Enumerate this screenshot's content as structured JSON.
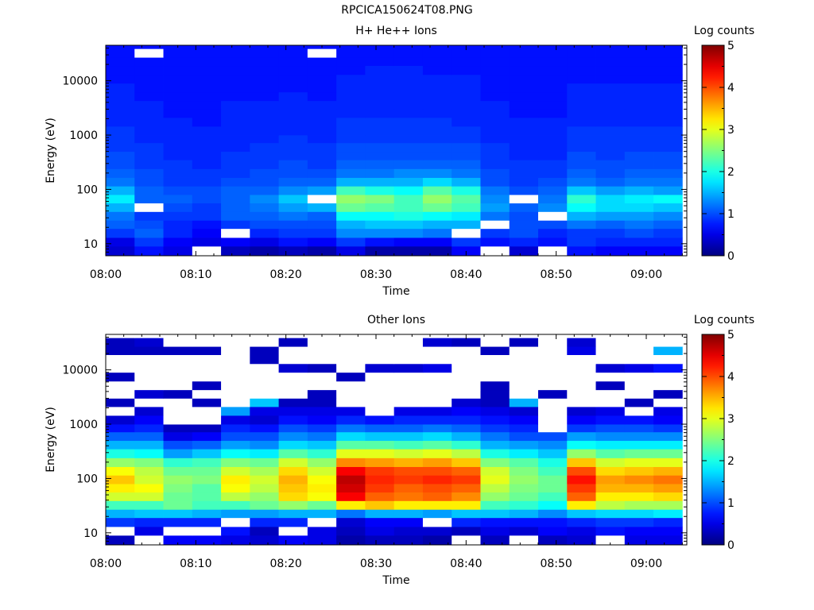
{
  "figure": {
    "title": "RPCICA150624T08.PNG"
  },
  "colors": {
    "missing": "#ffffff",
    "colormap": "jet"
  },
  "chart_data": [
    {
      "type": "heatmap",
      "title": "H+ He++ Ions",
      "xlabel": "Time",
      "ylabel": "Energy (eV)",
      "colorbar_label": "Log counts",
      "colorbar_ticks": [
        "0",
        "1",
        "2",
        "3",
        "4",
        "5"
      ],
      "clim": [
        0,
        5
      ],
      "x_ticks": [
        "08:00",
        "08:10",
        "08:20",
        "08:30",
        "08:40",
        "08:50",
        "09:00"
      ],
      "x_tick_minutes": [
        0,
        10,
        20,
        30,
        40,
        50,
        60
      ],
      "xlim_minutes": [
        0,
        64.5
      ],
      "y_scale": "log",
      "y_ticks": [
        "10",
        "100",
        "1000",
        "10000"
      ],
      "y_tick_values": [
        10,
        100,
        1000,
        10000
      ],
      "ylim": [
        6,
        45000
      ],
      "time_bins_minutes": [
        0,
        3.2,
        6.4,
        9.6,
        12.8,
        16.0,
        19.2,
        22.4,
        25.6,
        28.8,
        32.0,
        35.2,
        38.4,
        41.6,
        44.8,
        48.0,
        51.2,
        54.4,
        57.6,
        60.8,
        64.0
      ],
      "energy_bin_edges_ev": [
        6,
        9,
        13,
        19,
        27,
        39,
        56,
        80,
        115,
        165,
        240,
        350,
        500,
        720,
        1000,
        1450,
        2100,
        3000,
        4300,
        6200,
        9000,
        13000,
        19000,
        27000,
        39000,
        45000
      ],
      "log_counts": [
        [
          0.4,
          0.7,
          0.5,
          null,
          0.3,
          0.2,
          0.3,
          0.2,
          0.5,
          0.2,
          0.2,
          0.2,
          0.6,
          null,
          0.4,
          null,
          0.7,
          0.6,
          0.6,
          0.6
        ],
        [
          0.5,
          0.9,
          0.6,
          0.5,
          0.6,
          0.5,
          0.7,
          0.6,
          0.9,
          0.7,
          0.6,
          0.6,
          0.9,
          0.7,
          0.8,
          0.7,
          0.9,
          0.8,
          0.8,
          0.8
        ],
        [
          0.9,
          1.1,
          0.8,
          0.6,
          null,
          0.8,
          0.9,
          0.9,
          1.3,
          1.3,
          1.3,
          1.2,
          null,
          0.9,
          1.0,
          0.8,
          0.9,
          0.9,
          1.0,
          0.9
        ],
        [
          1.1,
          1.0,
          0.8,
          0.7,
          0.9,
          1.0,
          1.0,
          1.0,
          1.5,
          1.6,
          1.6,
          1.5,
          1.5,
          null,
          1.0,
          1.0,
          1.2,
          1.1,
          1.2,
          1.1
        ],
        [
          1.2,
          0.9,
          0.9,
          0.9,
          1.1,
          1.1,
          1.2,
          1.1,
          1.9,
          1.9,
          2.0,
          1.9,
          1.8,
          1.2,
          1.0,
          null,
          1.5,
          1.4,
          1.4,
          1.3
        ],
        [
          1.5,
          null,
          1.0,
          0.9,
          1.1,
          1.2,
          1.4,
          1.5,
          2.4,
          2.3,
          2.2,
          2.4,
          2.2,
          1.4,
          1.1,
          1.3,
          1.9,
          1.7,
          1.7,
          1.6
        ],
        [
          1.8,
          1.1,
          1.1,
          1.0,
          1.1,
          1.3,
          1.6,
          null,
          2.6,
          2.5,
          2.2,
          2.6,
          2.3,
          1.3,
          null,
          1.2,
          2.1,
          1.7,
          1.8,
          1.9
        ],
        [
          1.5,
          1.1,
          1.0,
          1.0,
          1.1,
          1.1,
          1.3,
          1.4,
          2.2,
          2.0,
          1.9,
          2.3,
          2.0,
          1.2,
          1.0,
          1.1,
          1.6,
          1.4,
          1.5,
          1.4
        ],
        [
          1.2,
          1.0,
          0.9,
          0.9,
          1.0,
          1.0,
          1.1,
          1.1,
          1.5,
          1.5,
          1.5,
          1.7,
          1.5,
          1.0,
          0.9,
          1.0,
          1.2,
          1.1,
          1.2,
          1.2
        ],
        [
          1.1,
          1.0,
          0.9,
          0.9,
          0.9,
          1.0,
          1.0,
          1.0,
          1.2,
          1.2,
          1.3,
          1.3,
          1.2,
          1.0,
          0.9,
          0.9,
          1.1,
          1.0,
          1.1,
          1.1
        ],
        [
          1.0,
          0.9,
          0.9,
          0.8,
          0.9,
          0.9,
          1.0,
          0.9,
          1.1,
          1.1,
          1.1,
          1.1,
          1.1,
          0.9,
          0.9,
          0.9,
          1.0,
          1.0,
          1.0,
          1.0
        ],
        [
          1.0,
          0.9,
          0.8,
          0.8,
          0.9,
          0.9,
          0.9,
          0.9,
          1.0,
          1.0,
          1.0,
          1.0,
          1.0,
          0.9,
          0.8,
          0.8,
          1.0,
          0.9,
          1.0,
          1.0
        ],
        [
          0.9,
          0.9,
          0.8,
          0.8,
          0.8,
          0.9,
          0.9,
          0.9,
          1.0,
          1.0,
          1.0,
          1.0,
          1.0,
          0.9,
          0.8,
          0.8,
          0.9,
          0.9,
          0.9,
          0.9
        ],
        [
          0.9,
          0.8,
          0.8,
          0.8,
          0.8,
          0.8,
          0.9,
          0.8,
          0.9,
          0.9,
          0.9,
          0.9,
          0.9,
          0.8,
          0.8,
          0.8,
          0.9,
          0.9,
          0.9,
          0.9
        ],
        [
          0.9,
          0.8,
          0.8,
          0.8,
          0.8,
          0.8,
          0.8,
          0.8,
          0.9,
          0.9,
          0.9,
          0.9,
          0.9,
          0.8,
          0.8,
          0.8,
          0.9,
          0.9,
          0.9,
          0.9
        ],
        [
          0.8,
          0.8,
          0.8,
          0.7,
          0.8,
          0.8,
          0.8,
          0.8,
          0.9,
          0.9,
          0.9,
          0.9,
          0.8,
          0.8,
          0.8,
          0.8,
          0.8,
          0.8,
          0.8,
          0.8
        ],
        [
          0.8,
          0.8,
          0.7,
          0.7,
          0.8,
          0.8,
          0.8,
          0.8,
          0.8,
          0.8,
          0.8,
          0.8,
          0.8,
          0.8,
          0.7,
          0.7,
          0.8,
          0.8,
          0.8,
          0.8
        ],
        [
          0.8,
          0.8,
          0.7,
          0.7,
          0.8,
          0.8,
          0.8,
          0.8,
          0.8,
          0.8,
          0.8,
          0.8,
          0.8,
          0.8,
          0.7,
          0.7,
          0.8,
          0.8,
          0.8,
          0.8
        ],
        [
          0.8,
          0.7,
          0.7,
          0.7,
          0.7,
          0.7,
          0.8,
          0.7,
          0.8,
          0.8,
          0.8,
          0.8,
          0.8,
          0.7,
          0.7,
          0.7,
          0.8,
          0.8,
          0.8,
          0.8
        ],
        [
          0.8,
          0.7,
          0.7,
          0.7,
          0.7,
          0.7,
          0.7,
          0.7,
          0.8,
          0.8,
          0.8,
          0.8,
          0.8,
          0.7,
          0.7,
          0.7,
          0.8,
          0.8,
          0.8,
          0.8
        ],
        [
          0.7,
          0.7,
          0.7,
          0.7,
          0.7,
          0.7,
          0.7,
          0.7,
          0.8,
          0.8,
          0.8,
          0.8,
          0.8,
          0.7,
          0.7,
          0.7,
          0.7,
          0.7,
          0.7,
          0.7
        ],
        [
          0.7,
          0.7,
          0.7,
          0.7,
          0.7,
          0.7,
          0.7,
          0.7,
          0.7,
          0.8,
          0.8,
          0.7,
          0.7,
          0.7,
          0.7,
          0.7,
          0.7,
          0.7,
          0.7,
          0.7
        ],
        [
          0.7,
          0.7,
          0.7,
          0.7,
          0.7,
          0.7,
          0.7,
          0.7,
          0.7,
          0.7,
          0.7,
          0.7,
          0.7,
          0.7,
          0.7,
          0.7,
          0.7,
          0.7,
          0.7,
          0.7
        ],
        [
          0.7,
          null,
          0.7,
          0.7,
          0.7,
          0.7,
          0.7,
          null,
          0.7,
          0.7,
          0.7,
          0.7,
          0.7,
          0.7,
          0.7,
          0.7,
          0.7,
          0.7,
          0.7,
          0.7
        ],
        [
          0.7,
          0.7,
          0.7,
          0.7,
          0.7,
          0.7,
          0.7,
          0.7,
          0.7,
          0.7,
          0.7,
          0.7,
          0.7,
          0.7,
          0.7,
          0.7,
          0.7,
          0.7,
          0.7,
          0.7
        ]
      ]
    },
    {
      "type": "heatmap",
      "title": "Other Ions",
      "xlabel": "Time",
      "ylabel": "Energy (eV)",
      "colorbar_label": "Log counts",
      "colorbar_ticks": [
        "0",
        "1",
        "2",
        "3",
        "4",
        "5"
      ],
      "clim": [
        0,
        5
      ],
      "x_ticks": [
        "08:00",
        "08:10",
        "08:20",
        "08:30",
        "08:40",
        "08:50",
        "09:00"
      ],
      "x_tick_minutes": [
        0,
        10,
        20,
        30,
        40,
        50,
        60
      ],
      "xlim_minutes": [
        0,
        64.5
      ],
      "y_scale": "log",
      "y_ticks": [
        "10",
        "100",
        "1000",
        "10000"
      ],
      "y_tick_values": [
        10,
        100,
        1000,
        10000
      ],
      "ylim": [
        6,
        45000
      ],
      "time_bins_minutes": [
        0,
        3.2,
        6.4,
        9.6,
        12.8,
        16.0,
        19.2,
        22.4,
        25.6,
        28.8,
        32.0,
        35.2,
        38.4,
        41.6,
        44.8,
        48.0,
        51.2,
        54.4,
        57.6,
        60.8,
        64.0
      ],
      "energy_bin_edges_ev": [
        6,
        9,
        13,
        19,
        27,
        39,
        56,
        80,
        115,
        165,
        240,
        350,
        500,
        720,
        1000,
        1450,
        2100,
        3000,
        4300,
        6200,
        9000,
        13000,
        19000,
        27000,
        39000,
        45000
      ],
      "log_counts": [
        [
          0.3,
          null,
          0.6,
          0.6,
          0.5,
          0.4,
          0.6,
          0.5,
          0.2,
          0.3,
          0.3,
          0.2,
          null,
          0.3,
          null,
          0.3,
          0.4,
          null,
          0.5,
          0.5
        ],
        [
          null,
          0.5,
          null,
          null,
          0.7,
          0.3,
          null,
          0.5,
          0.3,
          0.5,
          0.4,
          0.4,
          0.3,
          0.5,
          0.4,
          0.6,
          0.5,
          0.7,
          0.6,
          0.6
        ],
        [
          0.9,
          0.8,
          0.8,
          0.8,
          null,
          0.8,
          0.8,
          null,
          0.4,
          0.6,
          0.6,
          null,
          0.8,
          0.7,
          0.7,
          0.7,
          0.8,
          0.9,
          0.9,
          0.8
        ],
        [
          1.5,
          1.6,
          1.6,
          1.5,
          1.4,
          1.4,
          1.5,
          1.5,
          1.2,
          1.5,
          1.5,
          1.4,
          1.6,
          1.6,
          1.5,
          1.3,
          1.6,
          1.7,
          1.7,
          1.8
        ],
        [
          2.2,
          2.2,
          2.4,
          2.2,
          2.2,
          2.4,
          2.6,
          2.4,
          3.2,
          3.4,
          3.2,
          3.2,
          3.2,
          2.2,
          2.1,
          1.9,
          3.2,
          2.8,
          2.7,
          2.7
        ],
        [
          2.9,
          2.9,
          2.4,
          2.3,
          2.8,
          2.6,
          3.3,
          3.1,
          4.4,
          3.9,
          3.8,
          3.9,
          3.7,
          2.6,
          2.4,
          2.2,
          3.9,
          3.2,
          3.2,
          3.3
        ],
        [
          3.2,
          3.1,
          2.5,
          2.3,
          3.1,
          2.8,
          3.4,
          3.2,
          4.6,
          4.1,
          3.9,
          4.0,
          3.9,
          2.8,
          2.5,
          2.4,
          4.1,
          3.5,
          3.5,
          3.6
        ],
        [
          3.4,
          2.9,
          2.6,
          2.5,
          3.2,
          2.9,
          3.5,
          3.1,
          4.7,
          4.2,
          4.1,
          4.2,
          4.1,
          3.0,
          2.6,
          2.4,
          4.3,
          3.6,
          3.7,
          3.8
        ],
        [
          3.1,
          2.8,
          2.4,
          2.4,
          2.9,
          2.7,
          3.3,
          2.9,
          4.4,
          4.1,
          4.0,
          4.0,
          3.9,
          2.9,
          2.5,
          2.2,
          4.0,
          3.3,
          3.4,
          3.5
        ],
        [
          2.6,
          2.5,
          2.1,
          2.2,
          2.5,
          2.4,
          2.9,
          2.6,
          3.7,
          3.6,
          3.5,
          3.6,
          3.4,
          2.5,
          2.3,
          2.0,
          3.4,
          2.9,
          3.0,
          3.0
        ],
        [
          2.0,
          1.9,
          1.4,
          1.6,
          1.9,
          1.8,
          2.3,
          2.1,
          3.0,
          3.0,
          2.9,
          3.0,
          2.8,
          2.0,
          1.8,
          1.6,
          2.6,
          2.3,
          2.4,
          2.4
        ],
        [
          1.5,
          1.5,
          1.0,
          1.1,
          1.4,
          1.3,
          1.7,
          1.6,
          2.3,
          2.3,
          2.2,
          2.3,
          2.1,
          1.5,
          1.4,
          1.3,
          1.9,
          1.8,
          1.8,
          1.8
        ],
        [
          1.1,
          1.1,
          0.5,
          0.6,
          1.0,
          1.0,
          1.3,
          1.2,
          1.7,
          1.6,
          1.6,
          1.7,
          1.5,
          1.2,
          1.0,
          1.0,
          1.4,
          1.3,
          1.3,
          1.3
        ],
        [
          0.7,
          0.8,
          0.3,
          0.3,
          0.8,
          0.7,
          1.0,
          0.9,
          1.2,
          1.1,
          1.1,
          1.2,
          1.1,
          0.9,
          0.8,
          null,
          0.9,
          1.0,
          1.0,
          0.9
        ],
        [
          0.4,
          0.6,
          null,
          null,
          0.5,
          0.4,
          0.7,
          0.6,
          0.8,
          0.7,
          0.8,
          0.8,
          0.8,
          0.7,
          0.6,
          null,
          0.6,
          0.7,
          0.7,
          0.6
        ],
        [
          null,
          0.4,
          null,
          null,
          1.4,
          0.5,
          0.5,
          0.5,
          0.5,
          null,
          0.5,
          0.5,
          0.6,
          0.5,
          0.4,
          null,
          0.4,
          0.5,
          null,
          0.5
        ],
        [
          0.3,
          null,
          null,
          0.3,
          null,
          1.6,
          0.3,
          0.3,
          null,
          null,
          null,
          null,
          0.4,
          0.3,
          1.5,
          null,
          null,
          null,
          0.3,
          null
        ],
        [
          null,
          0.4,
          0.3,
          null,
          null,
          null,
          null,
          0.3,
          null,
          null,
          null,
          null,
          null,
          0.3,
          null,
          0.3,
          null,
          null,
          null,
          0.3
        ],
        [
          null,
          null,
          null,
          0.3,
          null,
          null,
          null,
          null,
          null,
          null,
          null,
          null,
          null,
          0.3,
          null,
          null,
          null,
          0.3,
          null,
          null
        ],
        [
          0.3,
          null,
          null,
          null,
          null,
          null,
          null,
          null,
          0.3,
          null,
          null,
          null,
          null,
          null,
          null,
          null,
          null,
          null,
          null,
          null
        ],
        [
          null,
          null,
          null,
          null,
          null,
          null,
          0.4,
          0.3,
          null,
          0.4,
          0.4,
          0.5,
          null,
          null,
          null,
          null,
          null,
          0.4,
          0.5,
          0.7
        ],
        [
          null,
          null,
          null,
          null,
          null,
          0.3,
          null,
          null,
          null,
          null,
          null,
          null,
          null,
          null,
          null,
          null,
          null,
          null,
          null,
          null
        ],
        [
          0.3,
          0.3,
          0.3,
          0.3,
          null,
          0.3,
          null,
          null,
          null,
          null,
          null,
          null,
          null,
          0.3,
          null,
          null,
          0.5,
          null,
          null,
          1.5
        ],
        [
          0.3,
          0.4,
          null,
          null,
          null,
          null,
          0.3,
          null,
          null,
          null,
          null,
          0.4,
          0.3,
          null,
          0.3,
          null,
          0.4,
          null,
          null,
          null
        ],
        [
          null,
          null,
          null,
          null,
          null,
          null,
          null,
          null,
          null,
          null,
          null,
          null,
          null,
          null,
          null,
          null,
          null,
          null,
          null,
          null
        ]
      ]
    }
  ]
}
